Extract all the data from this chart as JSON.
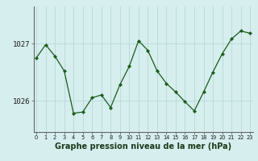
{
  "x": [
    0,
    1,
    2,
    3,
    4,
    5,
    6,
    7,
    8,
    9,
    10,
    11,
    12,
    13,
    14,
    15,
    16,
    17,
    18,
    19,
    20,
    21,
    22,
    23
  ],
  "y": [
    1026.75,
    1026.98,
    1026.78,
    1026.52,
    1025.78,
    1025.8,
    1026.05,
    1026.1,
    1025.88,
    1026.28,
    1026.6,
    1027.05,
    1026.88,
    1026.52,
    1026.3,
    1026.15,
    1025.98,
    1025.82,
    1026.15,
    1026.5,
    1026.82,
    1027.08,
    1027.22,
    1027.18
  ],
  "line_color": "#1a5c1a",
  "marker_color": "#1a5c1a",
  "bg_color": "#d6eeee",
  "grid_color": "#b8d8d8",
  "axis_color": "#666666",
  "xlabel": "Graphe pression niveau de la mer (hPa)",
  "xlabel_fontsize": 7,
  "yticks": [
    1026.0,
    1027.0
  ],
  "ylim": [
    1025.45,
    1027.65
  ],
  "xlim": [
    -0.3,
    23.3
  ],
  "figsize": [
    3.2,
    2.0
  ],
  "dpi": 100
}
